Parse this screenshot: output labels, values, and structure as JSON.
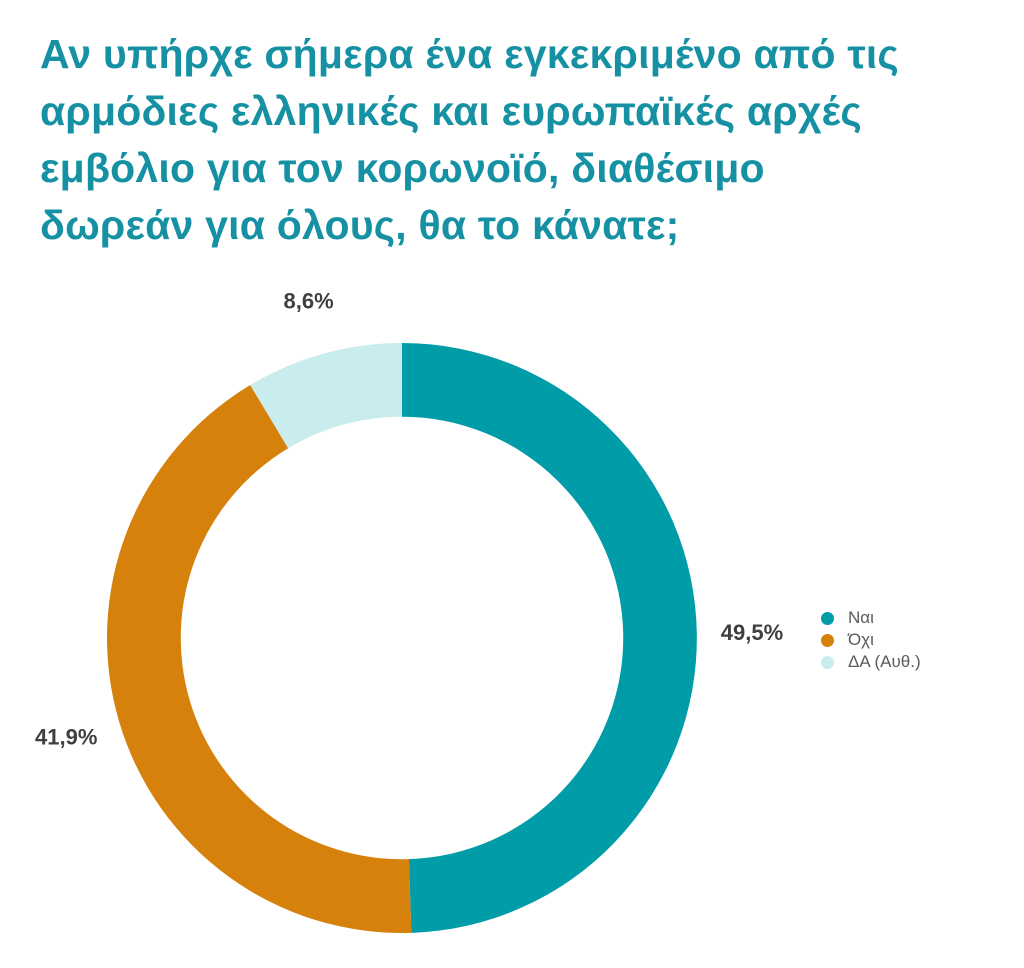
{
  "title": {
    "full_text": "Αν υπήρχε σήμερα ένα εγκεκριμένο από τις αρμόδιες ελληνικές και ευρωπαϊκές αρχές εμβόλιο για τον κορωνοϊό, διαθέσιμο δωρεάν για όλους, θα το κάνατε;",
    "lines": [
      "Αν υπήρχε σήμερα ένα εγκεκριμένο από τις",
      "αρμόδιες ελληνικές και ευρωπαϊκές αρχές",
      "εμβόλιο για τον κορωνοϊό, διαθέσιμο",
      "δωρεάν για όλους, θα το κάνατε;"
    ],
    "color": "#1691A3"
  },
  "chart_data": {
    "type": "pie",
    "subtype": "donut",
    "title": "Αν υπήρχε σήμερα ένα εγκεκριμένο από τις αρμόδιες ελληνικές και ευρωπαϊκές αρχές εμβόλιο για τον κορωνοϊό, διαθέσιμο δωρεάν για όλους, θα το κάνατε;",
    "categories": [
      "Ναι",
      "Όχι",
      "ΔΑ (Αυθ.)"
    ],
    "values": [
      49.5,
      41.9,
      8.6
    ],
    "value_labels": [
      "49,5%",
      "41,9%",
      "8,6%"
    ],
    "colors": [
      "#009CA8",
      "#D6810C",
      "#C9ECEC"
    ],
    "start_angle_deg": 0,
    "direction": "clockwise",
    "donut_hole_ratio": 0.75,
    "value_label_color": "#3F3F3F",
    "legend_position": "right",
    "background": "#FFFFFF"
  },
  "legend": {
    "items": [
      {
        "label": "Ναι",
        "color": "#009CA8"
      },
      {
        "label": "Όχι",
        "color": "#D6810C"
      },
      {
        "label": "ΔΑ (Αυθ.)",
        "color": "#C9ECEC"
      }
    ],
    "text_color": "#5A5A5A"
  }
}
